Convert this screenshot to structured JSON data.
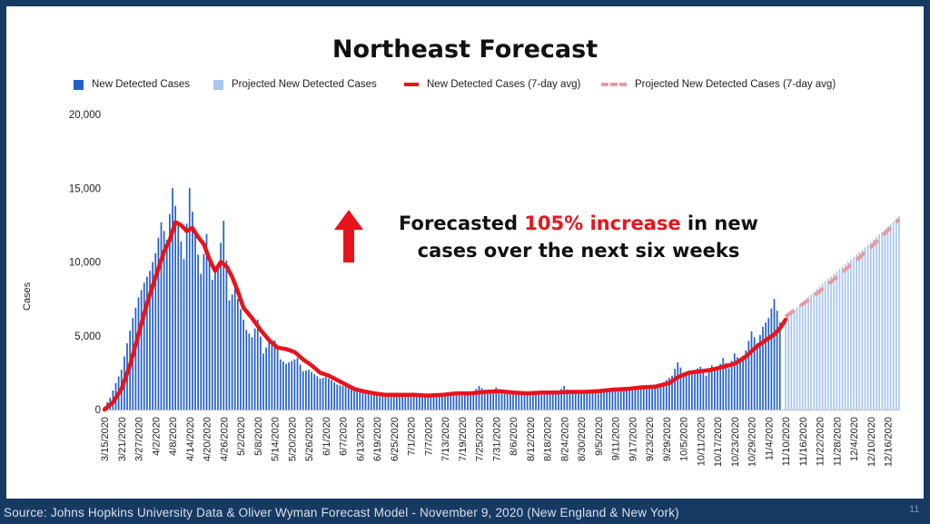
{
  "title": "Northeast Forecast",
  "legend": [
    {
      "label": "New Detected Cases",
      "style": "bar",
      "color": "#2461c7"
    },
    {
      "label": "Projected New Detected Cases",
      "style": "bar",
      "color": "#a9c6ef"
    },
    {
      "label": "New Detected Cases (7-day avg)",
      "style": "line",
      "color": "#e8141c"
    },
    {
      "label": "Projected New Detected Cases (7-day avg)",
      "style": "dashed",
      "color": "#e89a9c"
    }
  ],
  "annotation": {
    "part1": "Forecasted ",
    "highlight": "105% increase",
    "part2": " in new",
    "line2": "cases over the next six weeks"
  },
  "footer": "Source: Johns Hopkins University Data & Oliver Wyman Forecast Model - November 9, 2020 (New England & New York)",
  "page_number": "11",
  "chart_data": {
    "type": "bar",
    "ylabel": "Cases",
    "ylim": [
      0,
      20000
    ],
    "yticks": [
      "0",
      "5,000",
      "10,000",
      "15,000",
      "20,000"
    ],
    "x_tick_labels": [
      "3/15/2020",
      "3/21/2020",
      "3/27/2020",
      "4/2/2020",
      "4/8/2020",
      "4/14/2020",
      "4/20/2020",
      "4/26/2020",
      "5/2/2020",
      "5/8/2020",
      "5/14/2020",
      "5/20/2020",
      "5/26/2020",
      "6/1/2020",
      "6/7/2020",
      "6/13/2020",
      "6/19/2020",
      "6/25/2020",
      "7/1/2020",
      "7/7/2020",
      "7/13/2020",
      "7/19/2020",
      "7/25/2020",
      "7/31/2020",
      "8/6/2020",
      "8/12/2020",
      "8/18/2020",
      "8/24/2020",
      "8/30/2020",
      "9/5/2020",
      "9/11/2020",
      "9/17/2020",
      "9/23/2020",
      "9/29/2020",
      "10/5/2020",
      "10/11/2020",
      "10/17/2020",
      "10/23/2020",
      "10/29/2020",
      "11/4/2020",
      "11/10/2020",
      "11/16/2020",
      "11/22/2020",
      "11/28/2020",
      "12/4/2020",
      "12/10/2020",
      "12/16/2020"
    ],
    "start_date": "3/15/2020",
    "end_date": "12/20/2020",
    "series": [
      {
        "name": "New Detected Cases",
        "style": "bar",
        "color": "#2461c7",
        "points": [
          [
            "3/15/2020",
            200
          ],
          [
            "3/17/2020",
            800
          ],
          [
            "3/19/2020",
            1800
          ],
          [
            "3/21/2020",
            2700
          ],
          [
            "3/23/2020",
            4500
          ],
          [
            "3/25/2020",
            6200
          ],
          [
            "3/27/2020",
            7600
          ],
          [
            "3/29/2020",
            8600
          ],
          [
            "3/31/2020",
            9400
          ],
          [
            "4/2/2020",
            10600
          ],
          [
            "4/4/2020",
            12700
          ],
          [
            "4/6/2020",
            11500
          ],
          [
            "4/8/2020",
            15000
          ],
          [
            "4/10/2020",
            12600
          ],
          [
            "4/12/2020",
            10200
          ],
          [
            "4/14/2020",
            15000
          ],
          [
            "4/16/2020",
            11800
          ],
          [
            "4/18/2020",
            9200
          ],
          [
            "4/20/2020",
            11900
          ],
          [
            "4/22/2020",
            8800
          ],
          [
            "4/24/2020",
            9800
          ],
          [
            "4/26/2020",
            12800
          ],
          [
            "4/28/2020",
            7400
          ],
          [
            "4/30/2020",
            8200
          ],
          [
            "5/2/2020",
            6800
          ],
          [
            "5/4/2020",
            5400
          ],
          [
            "5/6/2020",
            4900
          ],
          [
            "5/8/2020",
            6100
          ],
          [
            "5/10/2020",
            3800
          ],
          [
            "5/12/2020",
            4600
          ],
          [
            "5/14/2020",
            4700
          ],
          [
            "5/16/2020",
            3400
          ],
          [
            "5/18/2020",
            3100
          ],
          [
            "5/20/2020",
            3300
          ],
          [
            "5/22/2020",
            3500
          ],
          [
            "5/24/2020",
            2600
          ],
          [
            "5/26/2020",
            2700
          ],
          [
            "5/28/2020",
            2400
          ],
          [
            "5/30/2020",
            2100
          ],
          [
            "6/1/2020",
            2200
          ],
          [
            "6/3/2020",
            2000
          ],
          [
            "6/5/2020",
            1700
          ],
          [
            "6/7/2020",
            1600
          ],
          [
            "6/9/2020",
            1500
          ],
          [
            "6/11/2020",
            1300
          ],
          [
            "6/13/2020",
            1200
          ],
          [
            "6/15/2020",
            1100
          ],
          [
            "6/17/2020",
            1000
          ],
          [
            "6/19/2020",
            1050
          ],
          [
            "6/21/2020",
            950
          ],
          [
            "6/23/2020",
            1000
          ],
          [
            "6/25/2020",
            1000
          ],
          [
            "6/27/2020",
            950
          ],
          [
            "6/29/2020",
            900
          ],
          [
            "7/1/2020",
            1100
          ],
          [
            "7/3/2020",
            1000
          ],
          [
            "7/5/2020",
            900
          ],
          [
            "7/7/2020",
            1000
          ],
          [
            "7/9/2020",
            1100
          ],
          [
            "7/11/2020",
            1000
          ],
          [
            "7/13/2020",
            950
          ],
          [
            "7/15/2020",
            1100
          ],
          [
            "7/17/2020",
            1200
          ],
          [
            "7/19/2020",
            1000
          ],
          [
            "7/21/2020",
            1100
          ],
          [
            "7/23/2020",
            1200
          ],
          [
            "7/25/2020",
            1600
          ],
          [
            "7/27/2020",
            1300
          ],
          [
            "7/29/2020",
            1200
          ],
          [
            "7/31/2020",
            1500
          ],
          [
            "8/2/2020",
            1100
          ],
          [
            "8/4/2020",
            1200
          ],
          [
            "8/6/2020",
            1100
          ],
          [
            "8/8/2020",
            1050
          ],
          [
            "8/10/2020",
            1100
          ],
          [
            "8/12/2020",
            1100
          ],
          [
            "8/14/2020",
            1200
          ],
          [
            "8/16/2020",
            1000
          ],
          [
            "8/18/2020",
            1200
          ],
          [
            "8/20/2020",
            1100
          ],
          [
            "8/22/2020",
            1200
          ],
          [
            "8/24/2020",
            1600
          ],
          [
            "8/26/2020",
            1100
          ],
          [
            "8/28/2020",
            1200
          ],
          [
            "8/30/2020",
            1300
          ],
          [
            "9/1/2020",
            1200
          ],
          [
            "9/3/2020",
            1300
          ],
          [
            "9/5/2020",
            1100
          ],
          [
            "9/7/2020",
            1400
          ],
          [
            "9/9/2020",
            1300
          ],
          [
            "9/11/2020",
            1500
          ],
          [
            "9/13/2020",
            1300
          ],
          [
            "9/15/2020",
            1500
          ],
          [
            "9/17/2020",
            1500
          ],
          [
            "9/19/2020",
            1400
          ],
          [
            "9/21/2020",
            1500
          ],
          [
            "9/23/2020",
            1600
          ],
          [
            "9/25/2020",
            1500
          ],
          [
            "9/27/2020",
            1700
          ],
          [
            "9/29/2020",
            2000
          ],
          [
            "10/1/2020",
            2300
          ],
          [
            "10/3/2020",
            3200
          ],
          [
            "10/5/2020",
            2500
          ],
          [
            "10/7/2020",
            2600
          ],
          [
            "10/9/2020",
            2700
          ],
          [
            "10/11/2020",
            2900
          ],
          [
            "10/13/2020",
            2300
          ],
          [
            "10/15/2020",
            3000
          ],
          [
            "10/17/2020",
            2700
          ],
          [
            "10/19/2020",
            3500
          ],
          [
            "10/21/2020",
            2800
          ],
          [
            "10/23/2020",
            3800
          ],
          [
            "10/25/2020",
            3300
          ],
          [
            "10/27/2020",
            4000
          ],
          [
            "10/29/2020",
            5300
          ],
          [
            "10/31/2020",
            4500
          ],
          [
            "11/2/2020",
            5600
          ],
          [
            "11/4/2020",
            6200
          ],
          [
            "11/6/2020",
            7500
          ],
          [
            "11/8/2020",
            5900
          ]
        ]
      },
      {
        "name": "Projected New Detected Cases",
        "style": "bar",
        "color": "#a9c6ef",
        "points": [
          [
            "11/10/2020",
            6200
          ],
          [
            "11/24/2020",
            8700
          ],
          [
            "12/8/2020",
            11000
          ],
          [
            "12/20/2020",
            13100
          ]
        ]
      },
      {
        "name": "New Detected Cases (7-day avg)",
        "style": "line",
        "color": "#e8141c",
        "points": [
          [
            "3/15/2020",
            0
          ],
          [
            "3/18/2020",
            500
          ],
          [
            "3/21/2020",
            1400
          ],
          [
            "3/24/2020",
            3000
          ],
          [
            "3/27/2020",
            5100
          ],
          [
            "3/30/2020",
            7200
          ],
          [
            "4/2/2020",
            9000
          ],
          [
            "4/5/2020",
            10700
          ],
          [
            "4/7/2020",
            11500
          ],
          [
            "4/9/2020",
            12700
          ],
          [
            "4/11/2020",
            12500
          ],
          [
            "4/13/2020",
            12100
          ],
          [
            "4/15/2020",
            12300
          ],
          [
            "4/17/2020",
            11700
          ],
          [
            "4/19/2020",
            11200
          ],
          [
            "4/21/2020",
            10200
          ],
          [
            "4/23/2020",
            9400
          ],
          [
            "4/25/2020",
            10000
          ],
          [
            "4/27/2020",
            9700
          ],
          [
            "4/29/2020",
            9000
          ],
          [
            "5/1/2020",
            8000
          ],
          [
            "5/3/2020",
            6900
          ],
          [
            "5/6/2020",
            6200
          ],
          [
            "5/9/2020",
            5400
          ],
          [
            "5/12/2020",
            4700
          ],
          [
            "5/15/2020",
            4200
          ],
          [
            "5/18/2020",
            4100
          ],
          [
            "5/21/2020",
            3900
          ],
          [
            "5/24/2020",
            3400
          ],
          [
            "5/27/2020",
            3000
          ],
          [
            "5/30/2020",
            2500
          ],
          [
            "6/2/2020",
            2300
          ],
          [
            "6/5/2020",
            2000
          ],
          [
            "6/8/2020",
            1700
          ],
          [
            "6/11/2020",
            1400
          ],
          [
            "6/14/2020",
            1250
          ],
          [
            "6/18/2020",
            1100
          ],
          [
            "6/22/2020",
            1000
          ],
          [
            "6/27/2020",
            1000
          ],
          [
            "7/2/2020",
            1000
          ],
          [
            "7/7/2020",
            950
          ],
          [
            "7/12/2020",
            1000
          ],
          [
            "7/17/2020",
            1100
          ],
          [
            "7/22/2020",
            1100
          ],
          [
            "7/27/2020",
            1200
          ],
          [
            "8/1/2020",
            1250
          ],
          [
            "8/6/2020",
            1150
          ],
          [
            "8/11/2020",
            1100
          ],
          [
            "8/16/2020",
            1150
          ],
          [
            "8/21/2020",
            1150
          ],
          [
            "8/26/2020",
            1200
          ],
          [
            "8/31/2020",
            1200
          ],
          [
            "9/5/2020",
            1250
          ],
          [
            "9/10/2020",
            1350
          ],
          [
            "9/15/2020",
            1400
          ],
          [
            "9/20/2020",
            1500
          ],
          [
            "9/25/2020",
            1550
          ],
          [
            "9/30/2020",
            1800
          ],
          [
            "10/3/2020",
            2200
          ],
          [
            "10/7/2020",
            2500
          ],
          [
            "10/11/2020",
            2600
          ],
          [
            "10/15/2020",
            2700
          ],
          [
            "10/19/2020",
            2900
          ],
          [
            "10/23/2020",
            3100
          ],
          [
            "10/27/2020",
            3600
          ],
          [
            "10/31/2020",
            4300
          ],
          [
            "11/3/2020",
            4700
          ],
          [
            "11/6/2020",
            5100
          ],
          [
            "11/8/2020",
            5500
          ],
          [
            "11/10/2020",
            6100
          ]
        ]
      },
      {
        "name": "Projected New Detected Cases (7-day avg)",
        "style": "dashed",
        "color": "#e89a9c",
        "points": [
          [
            "11/10/2020",
            6300
          ],
          [
            "11/20/2020",
            7700
          ],
          [
            "11/30/2020",
            9300
          ],
          [
            "12/10/2020",
            11000
          ],
          [
            "12/20/2020",
            12900
          ]
        ]
      }
    ]
  }
}
